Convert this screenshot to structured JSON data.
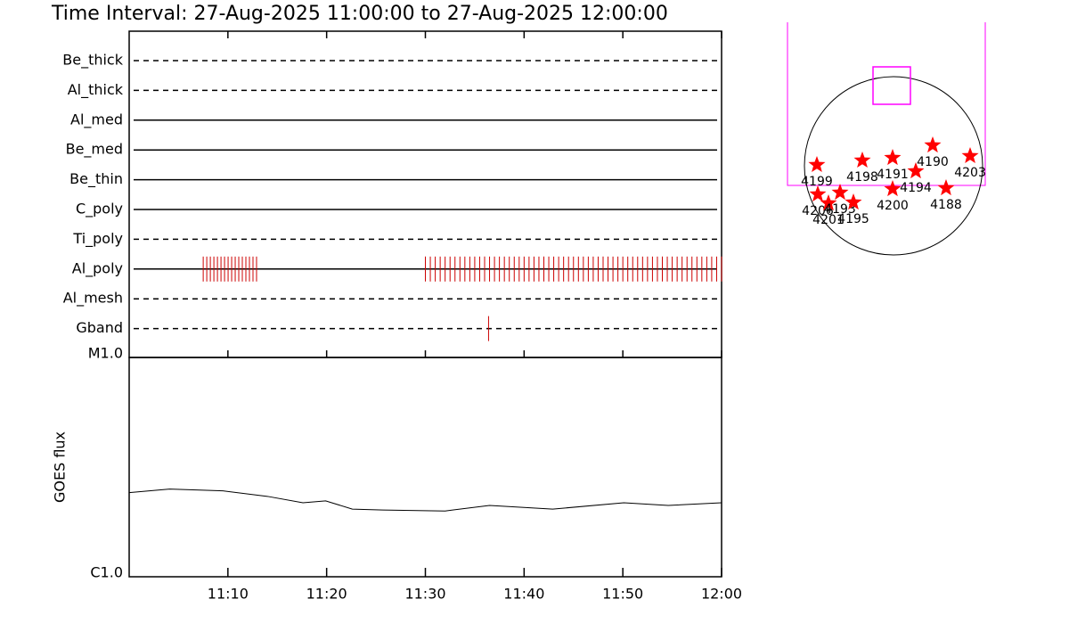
{
  "chart_data": [
    {
      "type": "timeline",
      "title": "Time Interval: 27-Aug-2025 11:00:00 to 27-Aug-2025 12:00:00",
      "categories": [
        "Be_thick",
        "Al_thick",
        "Al_med",
        "Be_med",
        "Be_thin",
        "C_poly",
        "Ti_poly",
        "Al_poly",
        "Al_mesh",
        "Gband"
      ],
      "line_styles": [
        "dashed",
        "dashed",
        "solid",
        "solid",
        "solid",
        "solid",
        "dashed",
        "solid",
        "dashed",
        "dashed"
      ],
      "events": [
        [],
        [],
        [],
        [],
        [],
        [],
        [],
        [
          7.5,
          7.86,
          8.22,
          8.58,
          8.94,
          9.3,
          9.66,
          10.02,
          10.38,
          10.74,
          11.1,
          11.46,
          11.82,
          12.18,
          12.54,
          12.9,
          30,
          30.5,
          31,
          31.5,
          32,
          32.5,
          33,
          33.5,
          34,
          34.5,
          35,
          35.5,
          36,
          36.5,
          37,
          37.5,
          38,
          38.5,
          39,
          39.5,
          40,
          40.5,
          41,
          41.5,
          42,
          42.5,
          43,
          43.5,
          44,
          44.5,
          45,
          45.5,
          46,
          46.5,
          47,
          47.5,
          48,
          48.5,
          49,
          49.5,
          50,
          50.5,
          51,
          51.5,
          52,
          52.5,
          53,
          53.5,
          54,
          54.5,
          55,
          55.5,
          56,
          56.5,
          57,
          57.5,
          58,
          58.5,
          59,
          59.5,
          60
        ],
        [],
        [
          36.4
        ]
      ],
      "event_color": "#cc0000",
      "xlim": [
        0,
        60
      ]
    },
    {
      "type": "line",
      "y_label": "GOES flux",
      "x": [
        0,
        4.1,
        9.5,
        14,
        17.6,
        19.9,
        22.6,
        25.7,
        32,
        36.5,
        42.9,
        50.1,
        54.6,
        60
      ],
      "values": [
        5.85e-06,
        6.31e-06,
        6.07e-06,
        5.41e-06,
        4.73e-06,
        4.92e-06,
        4.14e-06,
        4.06e-06,
        3.98e-06,
        4.47e-06,
        4.14e-06,
        4.73e-06,
        4.47e-06,
        4.73e-06
      ],
      "color": "#000000",
      "xlim": [
        0,
        60
      ],
      "xticks": [
        {
          "value": 10,
          "label": "11:10"
        },
        {
          "value": 20,
          "label": "11:20"
        },
        {
          "value": 30,
          "label": "11:30"
        },
        {
          "value": 40,
          "label": "11:40"
        },
        {
          "value": 50,
          "label": "11:50"
        },
        {
          "value": 60,
          "label": "12:00"
        }
      ],
      "ylim": [
        1e-06,
        0.0001
      ],
      "yticks": [
        {
          "value": 1e-06,
          "label": "C1.0"
        },
        {
          "value": 0.0001,
          "label": "M1.0"
        }
      ],
      "log_y": true
    },
    {
      "type": "scatter",
      "labels": [
        "4199",
        "4198",
        "4191",
        "4190",
        "4203",
        "4194",
        "4200",
        "4188",
        "4206",
        "4201",
        "4193",
        "4195"
      ],
      "x": [
        -826,
        -336,
        -10,
        422,
        826,
        240,
        -10,
        566,
        -816,
        -701,
        -576,
        -432
      ],
      "y": [
        10,
        58,
        86,
        221,
        106,
        -58,
        -250,
        -240,
        -307,
        -403,
        -288,
        -394
      ],
      "color": "#ff0000"
    }
  ]
}
